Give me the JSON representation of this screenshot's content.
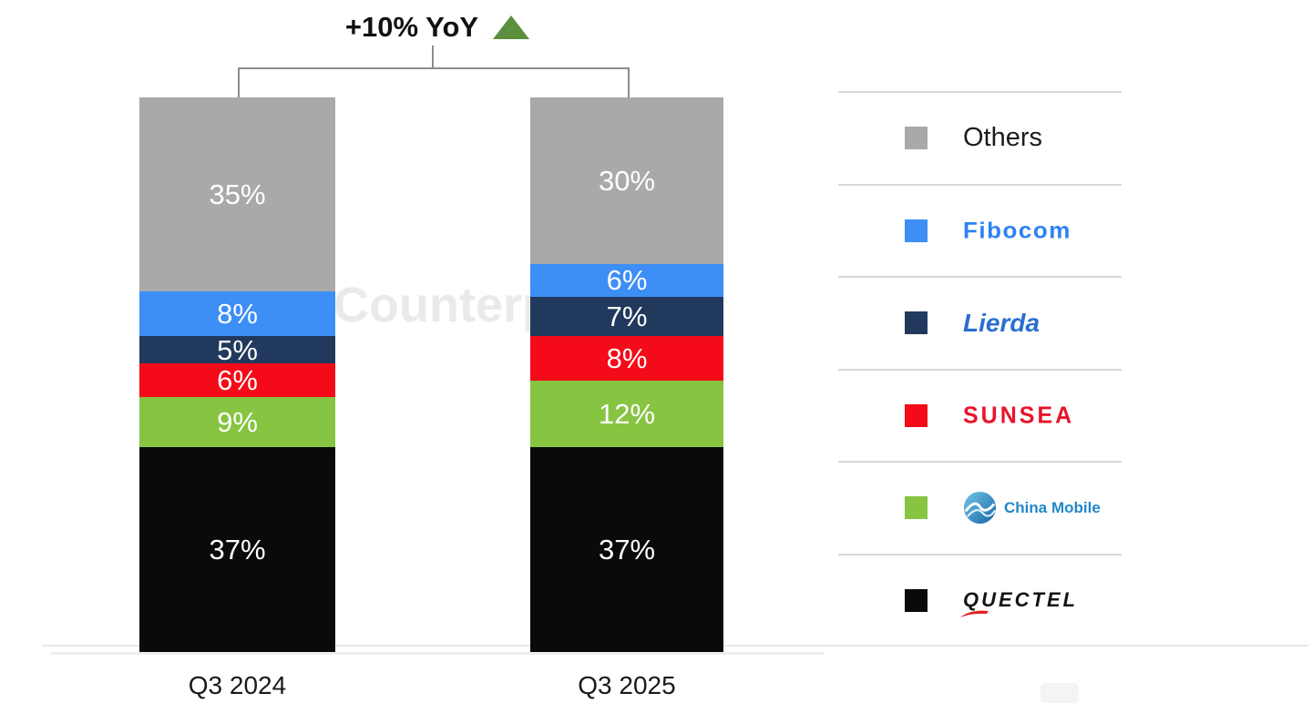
{
  "watermark": "Counterp",
  "header": {
    "growth_label": "+10% YoY",
    "growth_direction": "up",
    "arrow_color": "#5b8e3d"
  },
  "chart_data": {
    "type": "bar",
    "stacked": true,
    "title": "+10% YoY",
    "categories": [
      "Q3 2024",
      "Q3 2025"
    ],
    "series": [
      {
        "name": "Others",
        "color": "#a9a9a9",
        "values": [
          35,
          30
        ]
      },
      {
        "name": "Fibocom",
        "color": "#3d8ef5",
        "values": [
          8,
          6
        ]
      },
      {
        "name": "Lierda",
        "color": "#21395c",
        "values": [
          5,
          7
        ]
      },
      {
        "name": "SUNSEA",
        "color": "#f40a18",
        "values": [
          6,
          8
        ]
      },
      {
        "name": "China Mobile",
        "color": "#86c442",
        "values": [
          9,
          12
        ]
      },
      {
        "name": "QUECTEL",
        "color": "#0a0a0a",
        "values": [
          37,
          37
        ]
      }
    ],
    "value_format": "percent",
    "value_labels": [
      [
        "35%",
        "8%",
        "5%",
        "6%",
        "9%",
        "37%"
      ],
      [
        "30%",
        "6%",
        "7%",
        "8%",
        "12%",
        "37%"
      ]
    ],
    "ylim": [
      0,
      100
    ],
    "grid": false,
    "legend_position": "right"
  },
  "legend": {
    "items": [
      {
        "name": "Others",
        "display": "Others",
        "swatch": "#a9a9a9",
        "style": "plain"
      },
      {
        "name": "Fibocom",
        "display": "Fibocom",
        "swatch": "#3d8ef5",
        "style": "fibocom"
      },
      {
        "name": "Lierda",
        "display": "Lierda",
        "swatch": "#21395c",
        "style": "lierda"
      },
      {
        "name": "SUNSEA",
        "display": "SUNSEA",
        "swatch": "#f40a18",
        "style": "sunsea"
      },
      {
        "name": "China Mobile",
        "display": "China Mobile",
        "swatch": "#86c442",
        "style": "chinamobile",
        "icon": "china-mobile-globe-icon"
      },
      {
        "name": "QUECTEL",
        "display": "QUECTEL",
        "swatch": "#0a0a0a",
        "style": "quectel",
        "icon": "quectel-swoosh-icon"
      }
    ]
  }
}
